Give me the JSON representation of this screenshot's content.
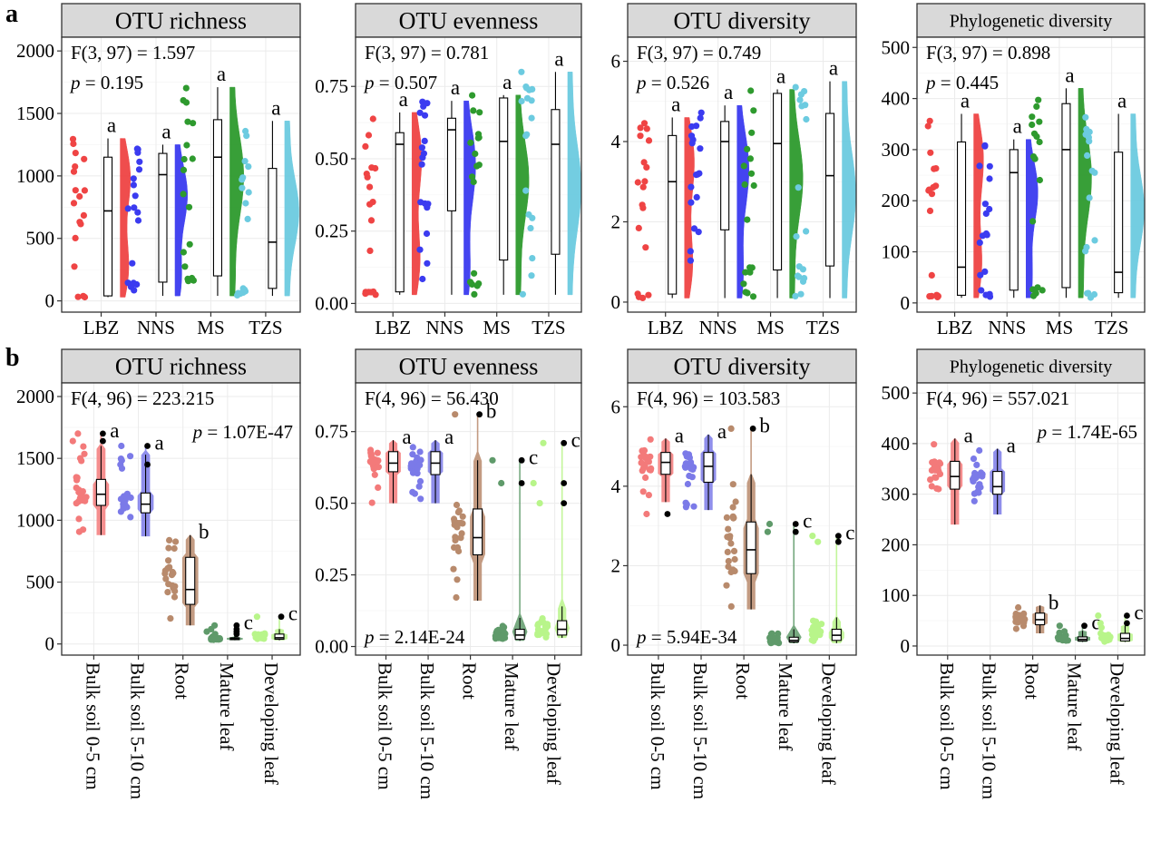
{
  "panel_labels": [
    "a",
    "b"
  ],
  "colors": {
    "LBZ": "#ef4444",
    "NNS": "#3b3bf0",
    "MS": "#2e9a2e",
    "TZS": "#6ccbe0",
    "Bulk soil 0-5 cm": "#f37a7a",
    "Bulk soil 5-10 cm": "#7b7ae8",
    "Root": "#b88a6c",
    "Mature leaf": "#5f9a6a",
    "Developing leaf": "#b8f58a"
  },
  "chart_data": [
    {
      "id": "a1",
      "type": "box-violin-strip",
      "title": "OTU richness",
      "categories": [
        "LBZ",
        "NNS",
        "MS",
        "TZS"
      ],
      "yticks": [
        0,
        500,
        1000,
        1500,
        2000
      ],
      "ylim": [
        -90,
        2110
      ],
      "stats": [
        "F(3, 97) = 1.597",
        "p = 0.195"
      ],
      "letters": [
        "a",
        "a",
        "a",
        "a"
      ],
      "boxes": [
        {
          "min": 30,
          "q1": 40,
          "median": 720,
          "q3": 1150,
          "max": 1300,
          "outliers": []
        },
        {
          "min": 40,
          "q1": 150,
          "median": 1010,
          "q3": 1180,
          "max": 1250,
          "outliers": []
        },
        {
          "min": 40,
          "q1": 200,
          "median": 1150,
          "q3": 1450,
          "max": 1710,
          "outliers": []
        },
        {
          "min": 40,
          "q1": 100,
          "median": 470,
          "q3": 1060,
          "max": 1440,
          "outliers": []
        }
      ]
    },
    {
      "id": "a2",
      "type": "box-violin-strip",
      "title": "OTU evenness",
      "categories": [
        "LBZ",
        "NNS",
        "MS",
        "TZS"
      ],
      "yticks": [
        0.0,
        0.25,
        0.5,
        0.75
      ],
      "ylim": [
        -0.03,
        0.92
      ],
      "ytick_labels": [
        "0.00",
        "0.25",
        "0.50",
        "0.75"
      ],
      "stats": [
        "F(3, 97) = 0.781",
        "p = 0.507"
      ],
      "letters": [
        "a",
        "a",
        "a",
        "a"
      ],
      "boxes": [
        {
          "min": 0.03,
          "q1": 0.04,
          "median": 0.55,
          "q3": 0.59,
          "max": 0.66,
          "outliers": []
        },
        {
          "min": 0.03,
          "q1": 0.32,
          "median": 0.6,
          "q3": 0.64,
          "max": 0.7,
          "outliers": []
        },
        {
          "min": 0.03,
          "q1": 0.15,
          "median": 0.56,
          "q3": 0.71,
          "max": 0.72,
          "outliers": []
        },
        {
          "min": 0.03,
          "q1": 0.17,
          "median": 0.55,
          "q3": 0.67,
          "max": 0.8,
          "outliers": []
        }
      ]
    },
    {
      "id": "a3",
      "type": "box-violin-strip",
      "title": "OTU diversity",
      "categories": [
        "LBZ",
        "NNS",
        "MS",
        "TZS"
      ],
      "yticks": [
        0,
        2,
        4,
        6
      ],
      "ylim": [
        -0.25,
        6.6
      ],
      "stats": [
        "F(3, 97) = 0.749",
        "p = 0.526"
      ],
      "letters": [
        "a",
        "a",
        "a",
        "a"
      ],
      "boxes": [
        {
          "min": 0.1,
          "q1": 0.2,
          "median": 3.0,
          "q3": 4.15,
          "max": 4.6,
          "outliers": []
        },
        {
          "min": 0.1,
          "q1": 1.8,
          "median": 4.0,
          "q3": 4.5,
          "max": 4.9,
          "outliers": []
        },
        {
          "min": 0.1,
          "q1": 0.8,
          "median": 3.95,
          "q3": 5.2,
          "max": 5.3,
          "outliers": []
        },
        {
          "min": 0.1,
          "q1": 0.9,
          "median": 3.15,
          "q3": 4.7,
          "max": 5.5,
          "outliers": []
        }
      ]
    },
    {
      "id": "a4",
      "type": "box-violin-strip",
      "title": "Phylogenetic diversity",
      "categories": [
        "LBZ",
        "NNS",
        "MS",
        "TZS"
      ],
      "yticks": [
        0,
        100,
        200,
        300,
        400,
        500
      ],
      "ylim": [
        -18,
        520
      ],
      "stats": [
        "F(3, 97) = 0.898",
        "p = 0.445"
      ],
      "letters": [
        "a",
        "a",
        "a",
        "a"
      ],
      "boxes": [
        {
          "min": 10,
          "q1": 15,
          "median": 70,
          "q3": 315,
          "max": 370,
          "outliers": []
        },
        {
          "min": 10,
          "q1": 25,
          "median": 255,
          "q3": 300,
          "max": 320,
          "outliers": []
        },
        {
          "min": 10,
          "q1": 30,
          "median": 300,
          "q3": 390,
          "max": 420,
          "outliers": []
        },
        {
          "min": 10,
          "q1": 20,
          "median": 60,
          "q3": 295,
          "max": 370,
          "outliers": []
        }
      ]
    },
    {
      "id": "b1",
      "type": "box-violin-strip",
      "title": "OTU richness",
      "categories": [
        "Bulk soil 0-5 cm",
        "Bulk soil 5-10 cm",
        "Root",
        "Mature leaf",
        "Developing leaf"
      ],
      "yticks": [
        0,
        500,
        1000,
        1500,
        2000
      ],
      "ylim": [
        -90,
        2110
      ],
      "stats": [
        "F(4, 96) = 223.215",
        "p = 1.07E-47"
      ],
      "letters": [
        "a",
        "a",
        "b",
        "c",
        "c"
      ],
      "boxes": [
        {
          "min": 880,
          "q1": 1120,
          "median": 1210,
          "q3": 1330,
          "max": 1600,
          "outliers": [
            1640,
            1700
          ]
        },
        {
          "min": 870,
          "q1": 1060,
          "median": 1130,
          "q3": 1220,
          "max": 1530,
          "outliers": [
            1450,
            1600
          ]
        },
        {
          "min": 150,
          "q1": 320,
          "median": 440,
          "q3": 700,
          "max": 880,
          "outliers": []
        },
        {
          "min": 30,
          "q1": 35,
          "median": 40,
          "q3": 50,
          "max": 60,
          "outliers": [
            80,
            100,
            120,
            150
          ]
        },
        {
          "min": 30,
          "q1": 38,
          "median": 50,
          "q3": 80,
          "max": 120,
          "outliers": [
            220
          ]
        }
      ]
    },
    {
      "id": "b2",
      "type": "box-violin-strip",
      "title": "OTU evenness",
      "categories": [
        "Bulk soil 0-5 cm",
        "Bulk soil 5-10 cm",
        "Root",
        "Mature leaf",
        "Developing leaf"
      ],
      "yticks": [
        0.0,
        0.25,
        0.5,
        0.75
      ],
      "ylim": [
        -0.03,
        0.92
      ],
      "ytick_labels": [
        "0.00",
        "0.25",
        "0.50",
        "0.75"
      ],
      "stats": [
        "F(4, 96) = 56.430",
        "p = 2.14E-24"
      ],
      "letters": [
        "a",
        "a",
        "b",
        "c",
        "c"
      ],
      "boxes": [
        {
          "min": 0.5,
          "q1": 0.61,
          "median": 0.64,
          "q3": 0.68,
          "max": 0.72,
          "outliers": []
        },
        {
          "min": 0.5,
          "q1": 0.6,
          "median": 0.64,
          "q3": 0.68,
          "max": 0.72,
          "outliers": []
        },
        {
          "min": 0.16,
          "q1": 0.32,
          "median": 0.38,
          "q3": 0.48,
          "max": 0.65,
          "outliers": [
            0.81
          ]
        },
        {
          "min": 0.02,
          "q1": 0.025,
          "median": 0.04,
          "q3": 0.06,
          "max": 0.1,
          "outliers": [
            0.57,
            0.65
          ]
        },
        {
          "min": 0.03,
          "q1": 0.04,
          "median": 0.06,
          "q3": 0.09,
          "max": 0.14,
          "outliers": [
            0.5,
            0.57,
            0.71
          ]
        }
      ]
    },
    {
      "id": "b3",
      "type": "box-violin-strip",
      "title": "OTU diversity",
      "categories": [
        "Bulk soil 0-5 cm",
        "Bulk soil 5-10 cm",
        "Root",
        "Mature leaf",
        "Developing leaf"
      ],
      "yticks": [
        0,
        2,
        4,
        6
      ],
      "ylim": [
        -0.25,
        6.6
      ],
      "stats": [
        "F(4, 96) = 103.583",
        "p = 5.94E-34"
      ],
      "letters": [
        "a",
        "a",
        "b",
        "c",
        "c"
      ],
      "boxes": [
        {
          "min": 3.6,
          "q1": 4.3,
          "median": 4.6,
          "q3": 4.85,
          "max": 5.2,
          "outliers": [
            3.3
          ]
        },
        {
          "min": 3.4,
          "q1": 4.1,
          "median": 4.5,
          "q3": 4.85,
          "max": 5.3,
          "outliers": []
        },
        {
          "min": 0.9,
          "q1": 1.8,
          "median": 2.4,
          "q3": 3.1,
          "max": 4.3,
          "outliers": [
            5.45
          ]
        },
        {
          "min": 0.05,
          "q1": 0.08,
          "median": 0.12,
          "q3": 0.2,
          "max": 0.4,
          "outliers": [
            2.85,
            3.05
          ]
        },
        {
          "min": 0.05,
          "q1": 0.12,
          "median": 0.25,
          "q3": 0.4,
          "max": 0.7,
          "outliers": [
            2.6,
            2.75
          ]
        }
      ]
    },
    {
      "id": "b4",
      "type": "box-violin-strip",
      "title": "Phylogenetic diversity",
      "categories": [
        "Bulk soil 0-5 cm",
        "Bulk soil 5-10 cm",
        "Root",
        "Mature leaf",
        "Developing leaf"
      ],
      "yticks": [
        0,
        100,
        200,
        300,
        400,
        500
      ],
      "ylim": [
        -18,
        520
      ],
      "stats": [
        "F(4, 96) = 557.021",
        "p = 1.74E-65"
      ],
      "letters": [
        "a",
        "a",
        "b",
        "c",
        "c"
      ],
      "boxes": [
        {
          "min": 240,
          "q1": 310,
          "median": 335,
          "q3": 365,
          "max": 410,
          "outliers": []
        },
        {
          "min": 260,
          "q1": 300,
          "median": 315,
          "q3": 345,
          "max": 390,
          "outliers": []
        },
        {
          "min": 25,
          "q1": 42,
          "median": 52,
          "q3": 65,
          "max": 80,
          "outliers": []
        },
        {
          "min": 8,
          "q1": 10,
          "median": 13,
          "q3": 18,
          "max": 30,
          "outliers": [
            40
          ]
        },
        {
          "min": 8,
          "q1": 10,
          "median": 15,
          "q3": 25,
          "max": 40,
          "outliers": [
            45,
            60
          ]
        }
      ]
    }
  ]
}
